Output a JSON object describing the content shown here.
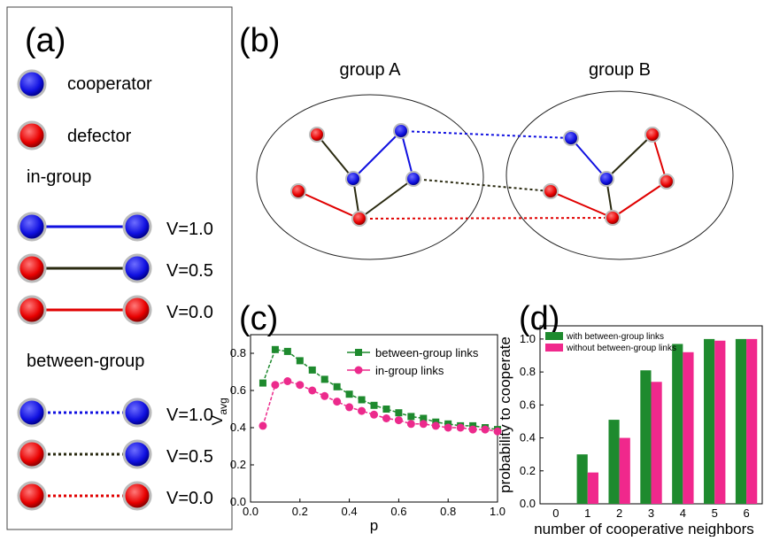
{
  "panel_labels": {
    "a": "(a)",
    "b": "(b)",
    "c": "(c)",
    "d": "(d)"
  },
  "legend": {
    "cooperator": "cooperator",
    "defector": "defector",
    "in_group": "in-group",
    "between_group": "between-group",
    "in_group_links": [
      "V=1.0",
      "V=0.5",
      "V=0.0"
    ],
    "between_group_links": [
      "V=1.0",
      "V=0.5",
      "V=0.0"
    ]
  },
  "network": {
    "group_a": "group A",
    "group_b": "group B"
  },
  "chart_data": [
    {
      "type": "line",
      "xlabel": "p",
      "ylabel": "V",
      "ylabel_sub": "avg",
      "x": [
        0.05,
        0.1,
        0.15,
        0.2,
        0.25,
        0.3,
        0.35,
        0.4,
        0.45,
        0.5,
        0.55,
        0.6,
        0.65,
        0.7,
        0.75,
        0.8,
        0.85,
        0.9,
        0.95,
        1.0
      ],
      "series": [
        {
          "name": "between-group links",
          "color": "#1e8a2e",
          "marker": "square",
          "values": [
            0.64,
            0.82,
            0.81,
            0.76,
            0.71,
            0.66,
            0.62,
            0.58,
            0.55,
            0.52,
            0.5,
            0.48,
            0.46,
            0.45,
            0.43,
            0.42,
            0.41,
            0.41,
            0.4,
            0.39
          ]
        },
        {
          "name": "in-group links",
          "color": "#ec2a8c",
          "marker": "circle",
          "values": [
            0.41,
            0.63,
            0.65,
            0.63,
            0.6,
            0.57,
            0.54,
            0.51,
            0.49,
            0.47,
            0.45,
            0.44,
            0.42,
            0.42,
            0.41,
            0.4,
            0.4,
            0.39,
            0.39,
            0.38
          ]
        }
      ],
      "xlim": [
        0,
        1.0
      ],
      "ylim": [
        0,
        0.9
      ],
      "xticks": [
        {
          "value": 0,
          "label": "0.0"
        },
        0.2,
        0.4,
        0.6,
        0.8,
        {
          "value": 1,
          "label": "1.0"
        }
      ],
      "yticks": [
        {
          "value": 0,
          "label": "0.0"
        },
        0.2,
        0.4,
        0.6,
        0.8
      ],
      "legend": "upper right"
    },
    {
      "type": "bar",
      "xlabel": "number of cooperative neighbors",
      "ylabel": "probability to cooperate",
      "categories": [
        "0",
        "1",
        "2",
        "3",
        "4",
        "5",
        "6"
      ],
      "series": [
        {
          "name": "with between-group links",
          "color": "#1e8a2e",
          "values": [
            0.0,
            0.3,
            0.51,
            0.81,
            0.97,
            1.0,
            1.0
          ]
        },
        {
          "name": "without between-group links",
          "color": "#f0288c",
          "values": [
            0.0,
            0.19,
            0.4,
            0.74,
            0.92,
            0.99,
            1.0
          ]
        }
      ],
      "ylim": [
        0,
        1.08
      ],
      "yticks": [
        {
          "value": 0,
          "label": "0.0"
        },
        0.2,
        0.4,
        0.6,
        0.8,
        {
          "value": 1,
          "label": "1.0"
        }
      ],
      "legend": "upper left"
    }
  ]
}
